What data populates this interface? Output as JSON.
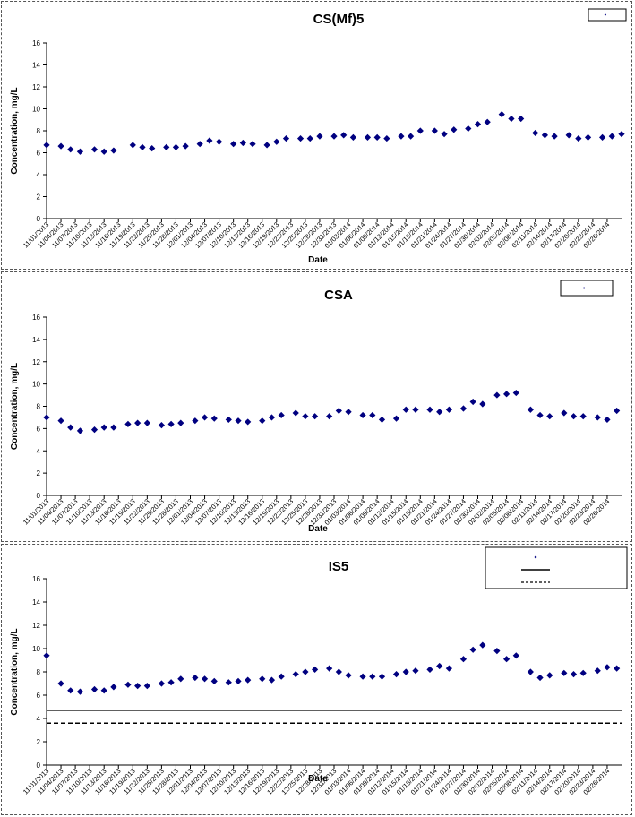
{
  "chart_data": [
    {
      "type": "scatter",
      "title": "CS(Mf)5",
      "xlabel": "Date",
      "ylabel": "Concentration, mg/L",
      "ylim": [
        0,
        16
      ],
      "yticks": [
        0,
        2,
        4,
        6,
        8,
        10,
        12,
        14,
        16
      ],
      "x_tick_labels": [
        "11/01/2013",
        "11/04/2013",
        "11/07/2013",
        "11/10/2013",
        "11/13/2013",
        "11/16/2013",
        "11/19/2013",
        "11/22/2013",
        "11/25/2013",
        "11/28/2013",
        "12/01/2013",
        "12/04/2013",
        "12/07/2013",
        "12/10/2013",
        "12/13/2013",
        "12/16/2013",
        "12/19/2013",
        "12/22/2013",
        "12/25/2013",
        "12/28/2013",
        "12/31/2013",
        "01/03/2014",
        "01/06/2014",
        "01/09/2014",
        "01/12/2014",
        "01/15/2014",
        "01/18/2014",
        "01/21/2014",
        "01/24/2014",
        "01/27/2014",
        "01/30/2014",
        "02/02/2014",
        "02/05/2014",
        "02/08/2014",
        "02/11/2014",
        "02/14/2014",
        "02/17/2014",
        "02/20/2014",
        "02/23/2014",
        "02/26/2014"
      ],
      "legend": {
        "position": "top-right"
      },
      "marker_color": "#000080",
      "series": [
        {
          "x": [
            "11/01/2013",
            "11/04/2013",
            "11/06/2013",
            "11/08/2013",
            "11/11/2013",
            "11/13/2013",
            "11/15/2013",
            "11/19/2013",
            "11/21/2013",
            "11/23/2013",
            "11/26/2013",
            "11/28/2013",
            "11/30/2013",
            "12/03/2013",
            "12/05/2013",
            "12/07/2013",
            "12/10/2013",
            "12/12/2013",
            "12/14/2013",
            "12/17/2013",
            "12/19/2013",
            "12/21/2013",
            "12/24/2013",
            "12/26/2013",
            "12/28/2013",
            "12/31/2013",
            "01/02/2014",
            "01/04/2014",
            "01/07/2014",
            "01/09/2014",
            "01/11/2014",
            "01/14/2014",
            "01/16/2014",
            "01/18/2014",
            "01/21/2014",
            "01/23/2014",
            "01/25/2014",
            "01/28/2014",
            "01/30/2014",
            "02/01/2014",
            "02/04/2014",
            "02/06/2014",
            "02/08/2014",
            "02/11/2014",
            "02/13/2014",
            "02/15/2014",
            "02/18/2014",
            "02/20/2014",
            "02/22/2014",
            "02/25/2014",
            "02/27/2014",
            "03/01/2014"
          ],
          "values": [
            6.7,
            6.6,
            6.3,
            6.1,
            6.3,
            6.1,
            6.2,
            6.7,
            6.5,
            6.4,
            6.5,
            6.5,
            6.6,
            6.8,
            7.1,
            7.0,
            6.8,
            6.9,
            6.8,
            6.7,
            7.0,
            7.3,
            7.3,
            7.3,
            7.5,
            7.5,
            7.6,
            7.4,
            7.4,
            7.4,
            7.3,
            7.5,
            7.5,
            8.0,
            8.0,
            7.7,
            8.1,
            8.2,
            8.6,
            8.8,
            9.5,
            9.1,
            9.1,
            7.8,
            7.6,
            7.5,
            7.6,
            7.3,
            7.4,
            7.4,
            7.5,
            7.7
          ]
        }
      ]
    },
    {
      "type": "scatter",
      "title": "CSA",
      "xlabel": "Date",
      "ylabel": "Concentration, mg/L",
      "ylim": [
        0,
        16
      ],
      "yticks": [
        0,
        2,
        4,
        6,
        8,
        10,
        12,
        14,
        16
      ],
      "x_tick_labels": [
        "11/01/2013",
        "11/04/2013",
        "11/07/2013",
        "11/10/2013",
        "11/13/2013",
        "11/16/2013",
        "11/19/2013",
        "11/22/2013",
        "11/25/2013",
        "11/28/2013",
        "12/01/2013",
        "12/04/2013",
        "12/07/2013",
        "12/10/2013",
        "12/13/2013",
        "12/16/2013",
        "12/19/2013",
        "12/22/2013",
        "12/25/2013",
        "12/28/2013",
        "12/31/2013",
        "01/03/2014",
        "01/06/2014",
        "01/09/2014",
        "01/12/2014",
        "01/15/2014",
        "01/18/2014",
        "01/21/2014",
        "01/24/2014",
        "01/27/2014",
        "01/30/2014",
        "02/02/2014",
        "02/05/2014",
        "02/08/2014",
        "02/11/2014",
        "02/14/2014",
        "02/17/2014",
        "02/20/2014",
        "02/23/2014",
        "02/26/2014"
      ],
      "legend": {
        "position": "top-right"
      },
      "marker_color": "#000080",
      "series": [
        {
          "x": [
            "11/01/2013",
            "11/04/2013",
            "11/06/2013",
            "11/08/2013",
            "11/11/2013",
            "11/13/2013",
            "11/15/2013",
            "11/18/2013",
            "11/20/2013",
            "11/22/2013",
            "11/25/2013",
            "11/27/2013",
            "11/29/2013",
            "12/02/2013",
            "12/04/2013",
            "12/06/2013",
            "12/09/2013",
            "12/11/2013",
            "12/13/2013",
            "12/16/2013",
            "12/18/2013",
            "12/20/2013",
            "12/23/2013",
            "12/25/2013",
            "12/27/2013",
            "12/30/2013",
            "01/01/2014",
            "01/03/2014",
            "01/06/2014",
            "01/08/2014",
            "01/10/2014",
            "01/13/2014",
            "01/15/2014",
            "01/17/2014",
            "01/20/2014",
            "01/22/2014",
            "01/24/2014",
            "01/27/2014",
            "01/29/2014",
            "01/31/2014",
            "02/03/2014",
            "02/05/2014",
            "02/07/2014",
            "02/10/2014",
            "02/12/2014",
            "02/14/2014",
            "02/17/2014",
            "02/19/2014",
            "02/21/2014",
            "02/24/2014",
            "02/26/2014",
            "02/28/2014"
          ],
          "values": [
            7.0,
            6.7,
            6.1,
            5.8,
            5.9,
            6.1,
            6.1,
            6.4,
            6.5,
            6.5,
            6.3,
            6.4,
            6.5,
            6.7,
            7.0,
            6.9,
            6.8,
            6.7,
            6.6,
            6.7,
            7.0,
            7.2,
            7.4,
            7.1,
            7.1,
            7.1,
            7.6,
            7.5,
            7.2,
            7.2,
            6.8,
            6.9,
            7.7,
            7.7,
            7.7,
            7.5,
            7.7,
            7.8,
            8.4,
            8.2,
            9.0,
            9.1,
            9.2,
            7.7,
            7.2,
            7.1,
            7.4,
            7.1,
            7.1,
            7.0,
            6.8,
            7.6
          ]
        }
      ]
    },
    {
      "type": "scatter",
      "title": "IS5",
      "xlabel": "Date",
      "ylabel": "Concentration, mg/L",
      "ylim": [
        0,
        16
      ],
      "yticks": [
        0,
        2,
        4,
        6,
        8,
        10,
        12,
        14,
        16
      ],
      "x_tick_labels": [
        "11/01/2013",
        "11/04/2013",
        "11/07/2013",
        "11/10/2013",
        "11/13/2013",
        "11/16/2013",
        "11/19/2013",
        "11/22/2013",
        "11/25/2013",
        "11/28/2013",
        "12/01/2013",
        "12/04/2013",
        "12/07/2013",
        "12/10/2013",
        "12/13/2013",
        "12/16/2013",
        "12/19/2013",
        "12/22/2013",
        "12/25/2013",
        "12/28/2013",
        "12/31/2013",
        "01/03/2014",
        "01/06/2014",
        "01/09/2014",
        "01/12/2014",
        "01/15/2014",
        "01/18/2014",
        "01/21/2014",
        "01/24/2014",
        "01/27/2014",
        "01/30/2014",
        "02/02/2014",
        "02/05/2014",
        "02/08/2014",
        "02/11/2014",
        "02/14/2014",
        "02/17/2014",
        "02/20/2014",
        "02/23/2014",
        "02/26/2014"
      ],
      "legend": {
        "position": "top-right"
      },
      "marker_color": "#000080",
      "series": [
        {
          "x": [
            "11/01/2013",
            "11/04/2013",
            "11/06/2013",
            "11/08/2013",
            "11/11/2013",
            "11/13/2013",
            "11/15/2013",
            "11/18/2013",
            "11/20/2013",
            "11/22/2013",
            "11/25/2013",
            "11/27/2013",
            "11/29/2013",
            "12/02/2013",
            "12/04/2013",
            "12/06/2013",
            "12/09/2013",
            "12/11/2013",
            "12/13/2013",
            "12/16/2013",
            "12/18/2013",
            "12/20/2013",
            "12/23/2013",
            "12/25/2013",
            "12/27/2013",
            "12/30/2013",
            "01/01/2014",
            "01/03/2014",
            "01/06/2014",
            "01/08/2014",
            "01/10/2014",
            "01/13/2014",
            "01/15/2014",
            "01/17/2014",
            "01/20/2014",
            "01/22/2014",
            "01/24/2014",
            "01/27/2014",
            "01/29/2014",
            "01/31/2014",
            "02/03/2014",
            "02/05/2014",
            "02/07/2014",
            "02/10/2014",
            "02/12/2014",
            "02/14/2014",
            "02/17/2014",
            "02/19/2014",
            "02/21/2014",
            "02/24/2014",
            "02/26/2014",
            "02/28/2014"
          ],
          "values": [
            9.4,
            7.0,
            6.4,
            6.3,
            6.5,
            6.4,
            6.7,
            6.9,
            6.8,
            6.8,
            7.0,
            7.1,
            7.4,
            7.5,
            7.4,
            7.2,
            7.1,
            7.2,
            7.3,
            7.4,
            7.3,
            7.6,
            7.8,
            8.0,
            8.2,
            8.3,
            8.0,
            7.7,
            7.6,
            7.6,
            7.6,
            7.8,
            8.0,
            8.1,
            8.2,
            8.5,
            8.3,
            9.1,
            9.9,
            10.3,
            9.8,
            9.1,
            9.4,
            8.0,
            7.5,
            7.7,
            7.9,
            7.8,
            7.9,
            8.1,
            8.4,
            8.3
          ]
        }
      ],
      "reference_lines": [
        {
          "value": 4.7,
          "style": "solid"
        },
        {
          "value": 3.6,
          "style": "dashed"
        }
      ]
    }
  ]
}
